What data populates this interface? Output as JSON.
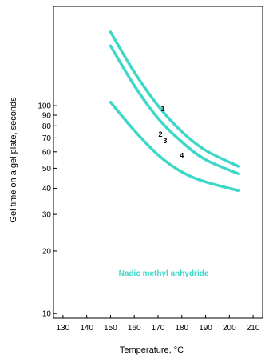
{
  "chart_data": {
    "type": "line",
    "xlabel": "Temperature, °C",
    "ylabel": "Gel time on a gel plate, seconds",
    "annotation": "Nadic methyl anhydride",
    "x_ticks": [
      130,
      140,
      150,
      160,
      170,
      180,
      190,
      200,
      210
    ],
    "y_ticks": [
      10,
      20,
      30,
      40,
      50,
      60,
      70,
      80,
      90,
      100
    ],
    "xlim": [
      126,
      214
    ],
    "ylim": [
      9.5,
      300
    ],
    "y_scale": "log",
    "grid": false,
    "line_color": "#3ED8C8",
    "series": [
      {
        "name": "1",
        "x": [
          150,
          160,
          170,
          180,
          190,
          204
        ],
        "y": [
          226,
          145,
          100,
          75,
          61,
          51
        ]
      },
      {
        "name": "2",
        "x": [
          150,
          160,
          170,
          180,
          190,
          204
        ],
        "y": [
          194,
          125,
          87,
          67,
          55,
          47
        ]
      },
      {
        "name": "3",
        "x": [
          150,
          160,
          170,
          180,
          190,
          204
        ],
        "y": [
          194,
          125,
          87,
          67,
          55,
          47
        ]
      },
      {
        "name": "4",
        "x": [
          150,
          160,
          170,
          180,
          190,
          204
        ],
        "y": [
          104,
          76,
          58,
          48,
          43,
          39
        ]
      }
    ],
    "series_label_positions": [
      {
        "name": "1",
        "x": 172,
        "y": 94
      },
      {
        "name": "2",
        "x": 171,
        "y": 71
      },
      {
        "name": "3",
        "x": 173,
        "y": 66
      },
      {
        "name": "4",
        "x": 180,
        "y": 56
      }
    ]
  }
}
